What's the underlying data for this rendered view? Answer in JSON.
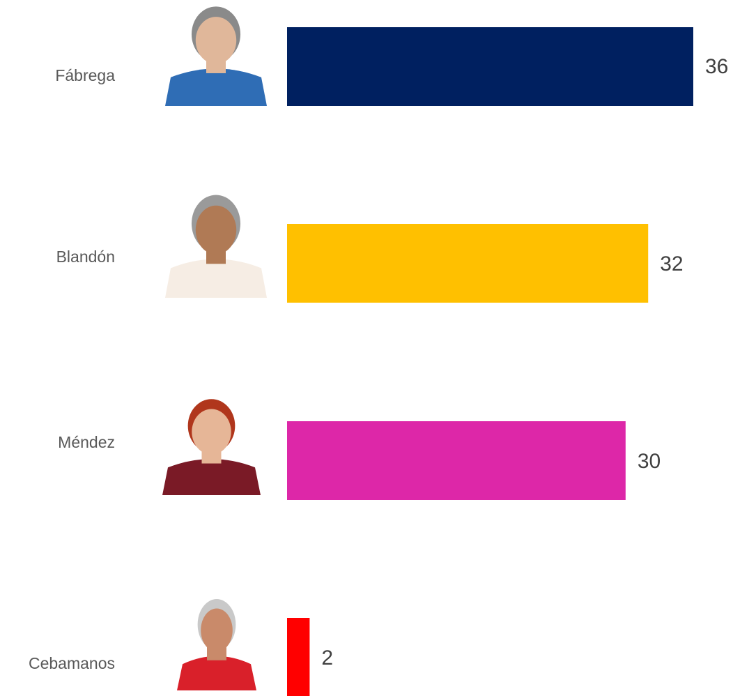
{
  "chart_data": {
    "type": "bar",
    "orientation": "horizontal",
    "categories": [
      "Fábrega",
      "Blandón",
      "Méndez",
      "Cebamanos"
    ],
    "values": [
      36,
      32,
      30,
      2
    ],
    "colors": [
      "#002060",
      "#ffc000",
      "#dd27a8",
      "#ff0000"
    ]
  }
}
